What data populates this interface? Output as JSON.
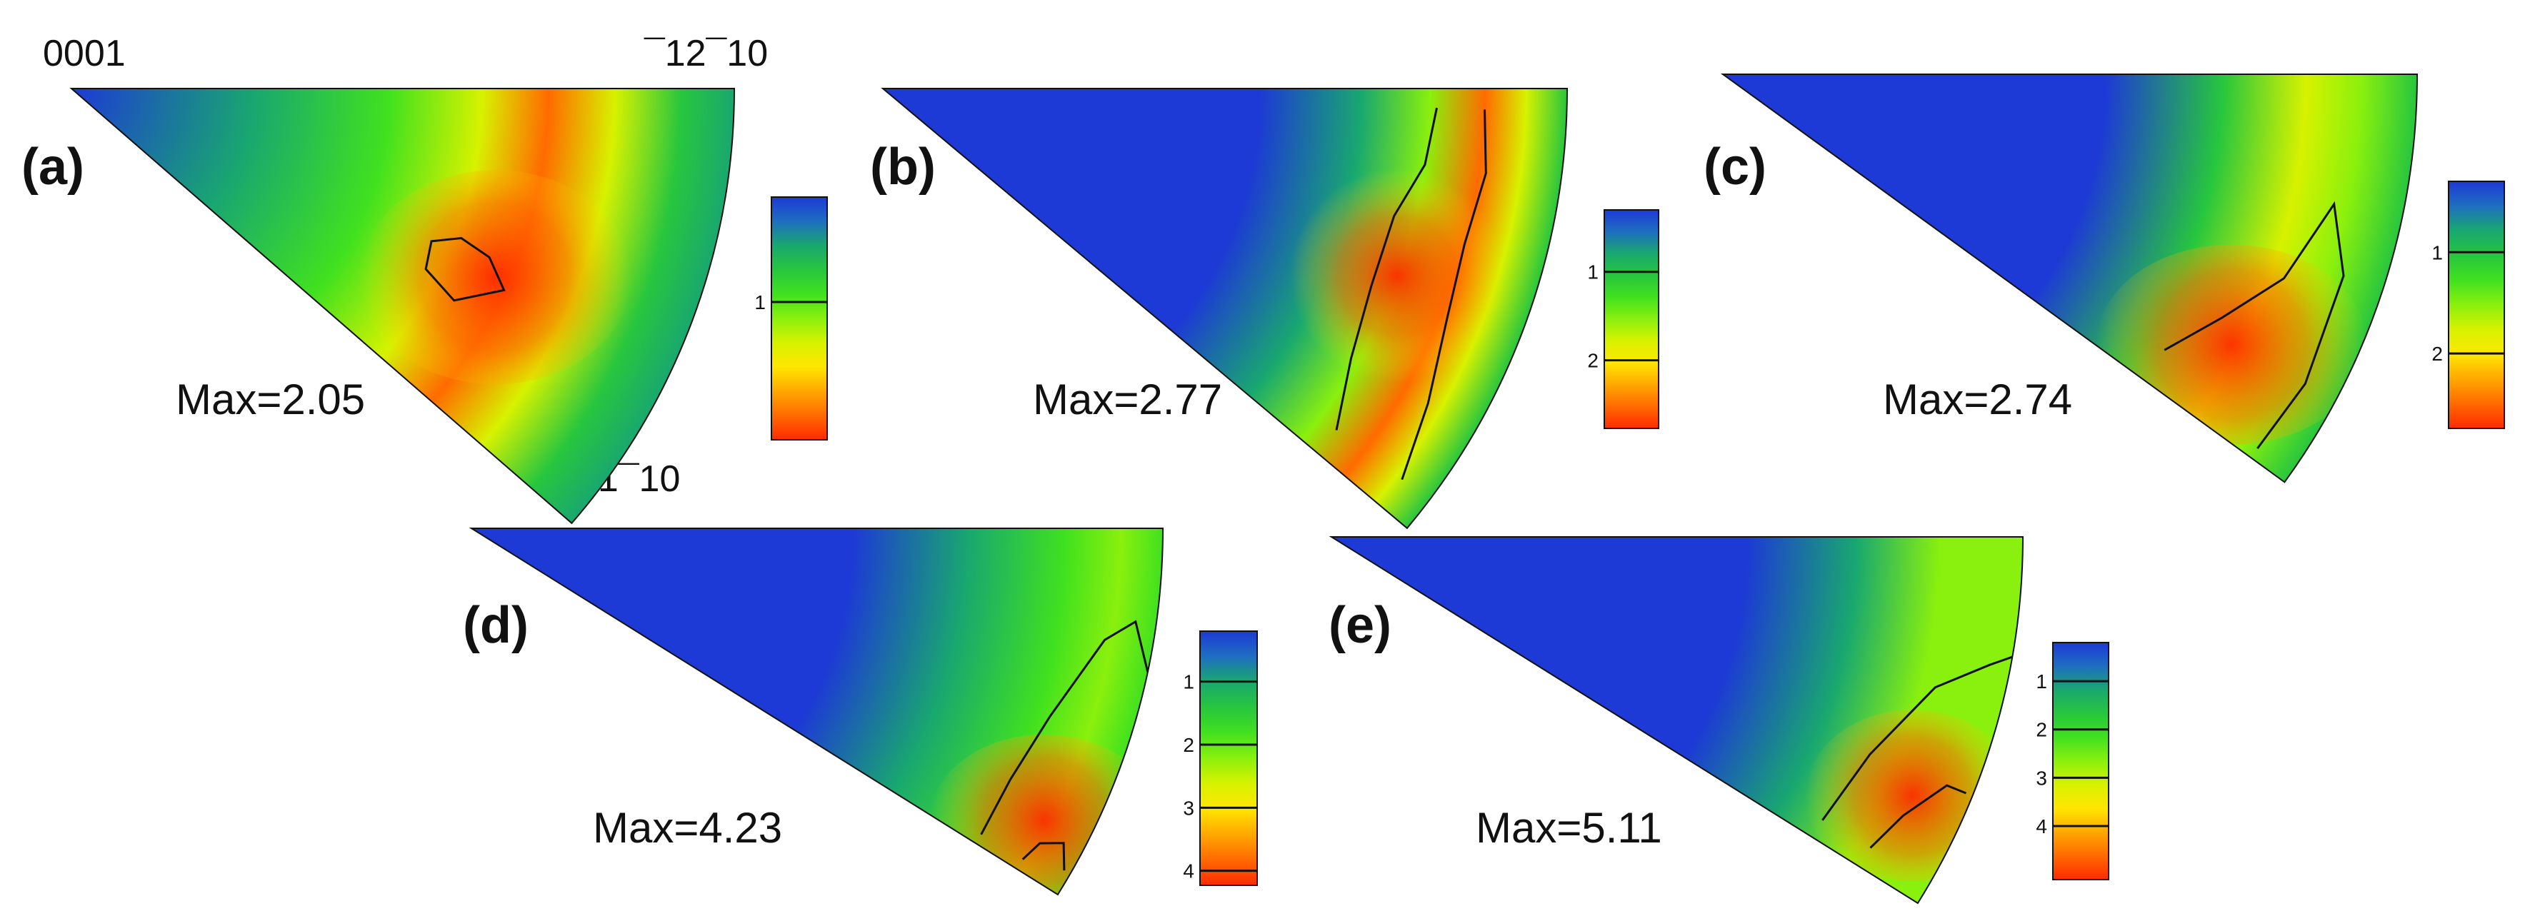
{
  "corner_labels": {
    "origin": "0001",
    "top_right": "¯12¯10",
    "bottom_right": "01¯10"
  },
  "scale_colors": [
    "#1d39d6",
    "#1e6ec0",
    "#19a86f",
    "#27c63e",
    "#41e11f",
    "#8af00d",
    "#d7f200",
    "#ffe600",
    "#ffa800",
    "#ff6a00",
    "#ff2a00"
  ],
  "panels": [
    {
      "letter": "(a)",
      "max_label": "Max=2.05",
      "max_value": 2.05,
      "colorbar_ticks": [
        {
          "label": "1",
          "value": 1
        }
      ],
      "colorbar_range": [
        0.2,
        2.05
      ]
    },
    {
      "letter": "(b)",
      "max_label": "Max=2.77",
      "max_value": 2.77,
      "colorbar_ticks": [
        {
          "label": "1",
          "value": 1
        },
        {
          "label": "2",
          "value": 2
        }
      ],
      "colorbar_range": [
        0.3,
        2.77
      ]
    },
    {
      "letter": "(c)",
      "max_label": "Max=2.74",
      "max_value": 2.74,
      "colorbar_ticks": [
        {
          "label": "1",
          "value": 1
        },
        {
          "label": "2",
          "value": 2
        }
      ],
      "colorbar_range": [
        0.3,
        2.74
      ]
    },
    {
      "letter": "(d)",
      "max_label": "Max=4.23",
      "max_value": 4.23,
      "colorbar_ticks": [
        {
          "label": "1",
          "value": 1
        },
        {
          "label": "2",
          "value": 2
        },
        {
          "label": "3",
          "value": 3
        },
        {
          "label": "4",
          "value": 4
        }
      ],
      "colorbar_range": [
        0.2,
        4.23
      ]
    },
    {
      "letter": "(e)",
      "max_label": "Max=5.11",
      "max_value": 5.11,
      "colorbar_ticks": [
        {
          "label": "1",
          "value": 1
        },
        {
          "label": "2",
          "value": 2
        },
        {
          "label": "3",
          "value": 3
        },
        {
          "label": "4",
          "value": 4
        }
      ],
      "colorbar_range": [
        0.2,
        5.11
      ]
    }
  ]
}
